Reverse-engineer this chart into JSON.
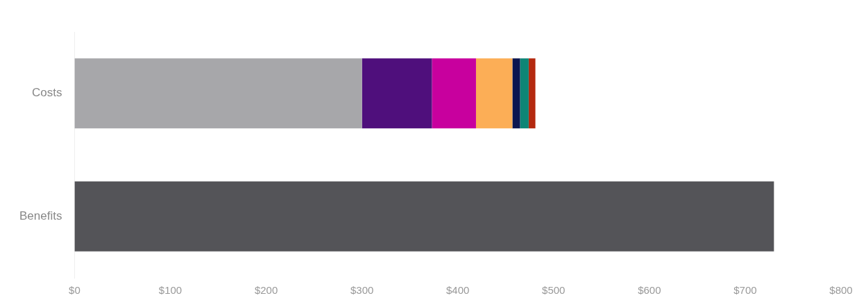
{
  "chart_data": {
    "type": "bar",
    "orientation": "horizontal",
    "stacked": true,
    "categories": [
      "Costs",
      "Benefits"
    ],
    "series": [
      {
        "color": "#a7a7aa",
        "values": [
          300,
          null
        ]
      },
      {
        "color": "#4f0f7c",
        "values": [
          73,
          null
        ]
      },
      {
        "color": "#c8009e",
        "values": [
          46,
          null
        ]
      },
      {
        "color": "#fcae56",
        "values": [
          38,
          null
        ]
      },
      {
        "color": "#0c1650",
        "values": [
          8,
          null
        ]
      },
      {
        "color": "#0e8576",
        "values": [
          9,
          null
        ]
      },
      {
        "color": "#b4290f",
        "values": [
          7,
          null
        ]
      },
      {
        "color": "#545458",
        "values": [
          null,
          730
        ]
      }
    ],
    "xlim": [
      0,
      800
    ],
    "xticks": [
      {
        "value": 0,
        "label": "$0"
      },
      {
        "value": 100,
        "label": "$100"
      },
      {
        "value": 200,
        "label": "$200"
      },
      {
        "value": 300,
        "label": "$300"
      },
      {
        "value": 400,
        "label": "$400"
      },
      {
        "value": 500,
        "label": "$500"
      },
      {
        "value": 600,
        "label": "$600"
      },
      {
        "value": 700,
        "label": "$700"
      },
      {
        "value": 800,
        "label": "$800"
      }
    ],
    "grid": false,
    "legend": false
  }
}
